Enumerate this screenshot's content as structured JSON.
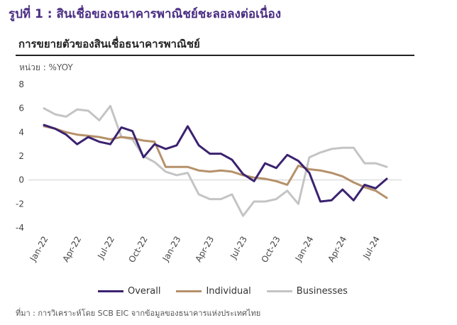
{
  "figure": {
    "title": "รูปที่ 1 : สินเชื่อของธนาคารพาณิชย์ชะลอลงต่อเนื่อง",
    "subtitle": "การขยายตัวของสินเชื่อธนาคารพาณิชย์",
    "unit_label": "หน่วย : %YOY",
    "source": "ที่มา : การวิเคราะห์โดย SCB EIC จากข้อมูลของธนาคารแห่งประเทศไทย"
  },
  "chart_data": {
    "type": "line",
    "x_tick_labels": [
      "Jan-22",
      "Apr-22",
      "Jul-22",
      "Oct-22",
      "Jan-23",
      "Apr-23",
      "Jul-23",
      "Oct-23",
      "Jan-24",
      "Apr-24",
      "Jul-24"
    ],
    "x": [
      "Jan-22",
      "Feb-22",
      "Mar-22",
      "Apr-22",
      "May-22",
      "Jun-22",
      "Jul-22",
      "Aug-22",
      "Sep-22",
      "Oct-22",
      "Nov-22",
      "Dec-22",
      "Jan-23",
      "Feb-23",
      "Mar-23",
      "Apr-23",
      "May-23",
      "Jun-23",
      "Jul-23",
      "Aug-23",
      "Sep-23",
      "Oct-23",
      "Nov-23",
      "Dec-23",
      "Jan-24",
      "Feb-24",
      "Mar-24",
      "Apr-24",
      "May-24",
      "Jun-24",
      "Jul-24",
      "Aug-24"
    ],
    "ylim": [
      -4,
      8
    ],
    "y_ticks": [
      -4,
      -2,
      0,
      2,
      4,
      6,
      8
    ],
    "grid": false,
    "legend_position": "bottom",
    "series": [
      {
        "name": "Overall",
        "color": "#3b2270",
        "values": [
          4.6,
          4.3,
          3.8,
          3.0,
          3.6,
          3.2,
          3.0,
          4.4,
          4.1,
          1.9,
          3.0,
          2.6,
          2.9,
          4.5,
          2.9,
          2.2,
          2.2,
          1.7,
          0.5,
          -0.1,
          1.4,
          1.0,
          2.1,
          1.6,
          0.6,
          -1.8,
          -1.7,
          -0.8,
          -1.7,
          -0.4,
          -0.7,
          0.1
        ]
      },
      {
        "name": "Individual",
        "color": "#b5916a",
        "values": [
          4.5,
          4.3,
          4.0,
          3.8,
          3.7,
          3.6,
          3.4,
          3.6,
          3.5,
          3.3,
          3.2,
          1.1,
          1.1,
          1.1,
          0.8,
          0.7,
          0.8,
          0.7,
          0.4,
          0.2,
          0.1,
          -0.1,
          -0.4,
          1.2,
          0.9,
          0.8,
          0.6,
          0.3,
          -0.2,
          -0.6,
          -0.9,
          -1.5
        ]
      },
      {
        "name": "Businesses",
        "color": "#c4c4c4",
        "values": [
          6.0,
          5.5,
          5.3,
          5.9,
          5.8,
          5.0,
          6.2,
          3.6,
          3.4,
          2.0,
          1.5,
          0.7,
          0.4,
          0.6,
          -1.2,
          -1.6,
          -1.6,
          -1.2,
          -3.0,
          -1.8,
          -1.8,
          -1.6,
          -0.9,
          -2.0,
          1.9,
          2.3,
          2.6,
          2.7,
          2.7,
          1.4,
          1.4,
          1.1
        ]
      }
    ]
  }
}
